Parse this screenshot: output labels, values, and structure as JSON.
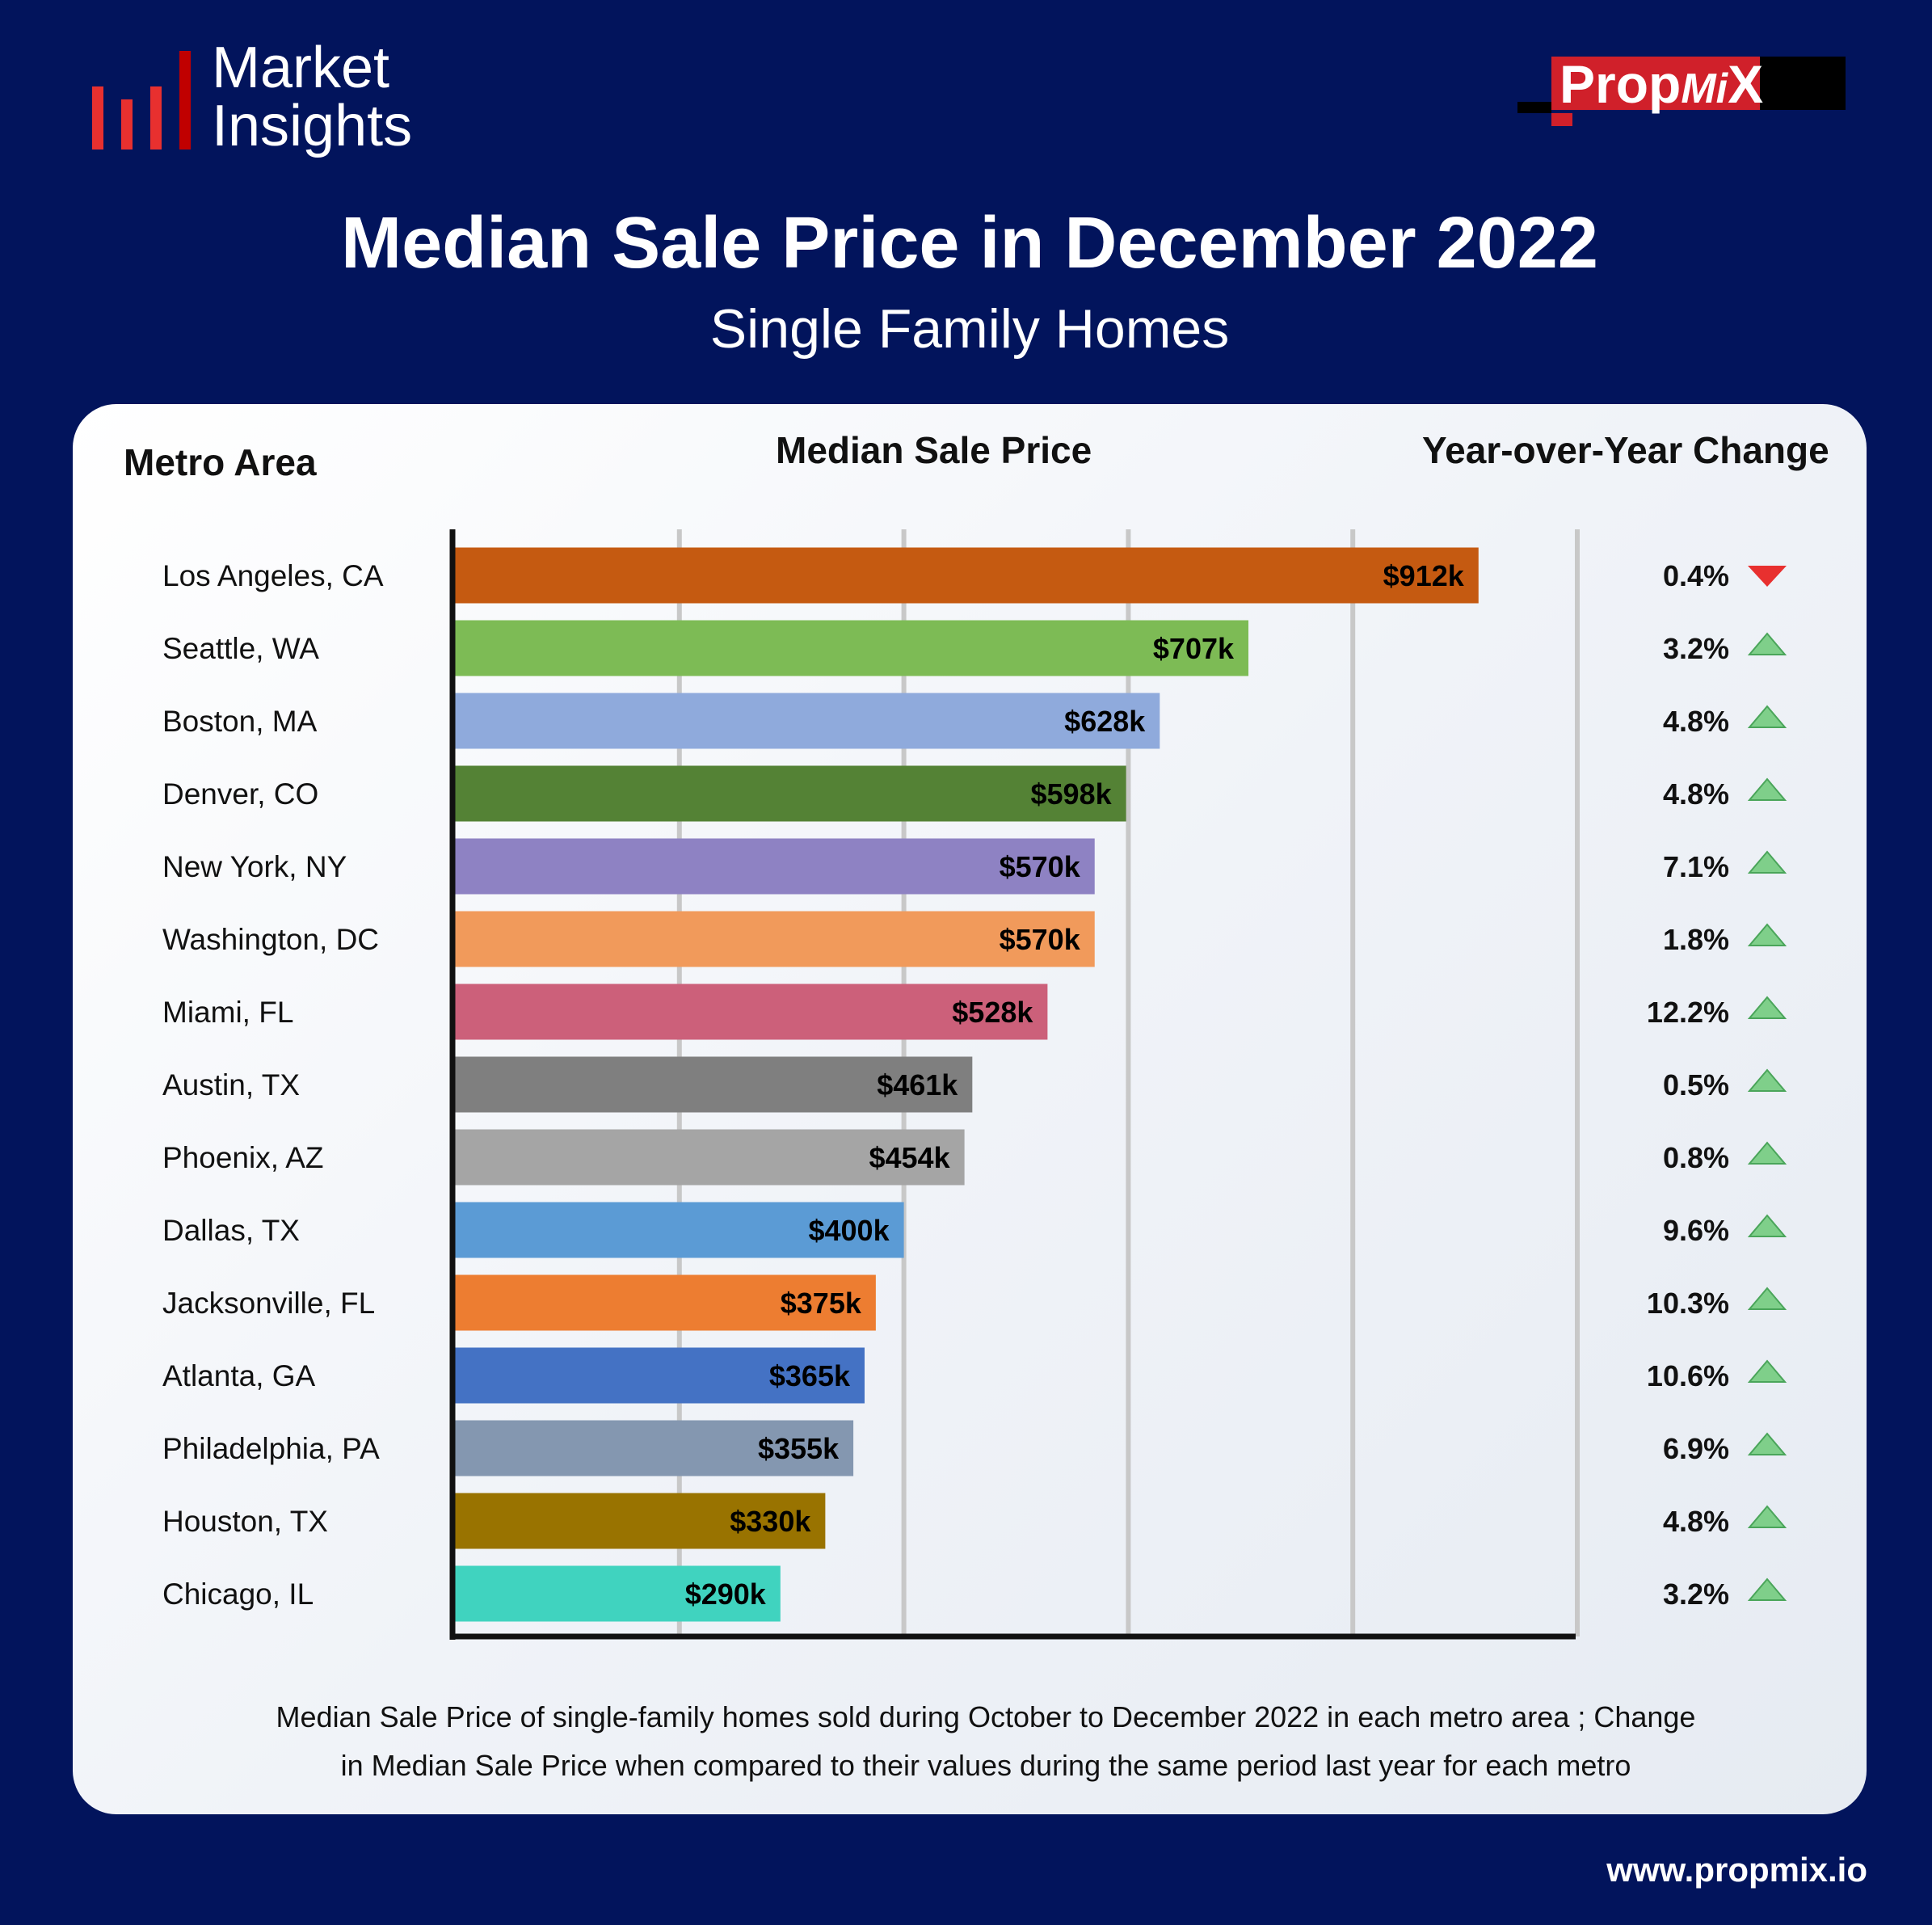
{
  "brand": {
    "logo_text_line1": "Market",
    "logo_text_line2": "Insights",
    "partner_logo": "PropMiX",
    "website": "www.propmix.io"
  },
  "header": {
    "title": "Median Sale Price in December 2022",
    "subtitle": "Single Family Homes"
  },
  "columns": {
    "metro": "Metro Area",
    "price": "Median Sale Price",
    "yoy": "Year-over-Year Change"
  },
  "footnote": {
    "line1": "Median Sale Price of single-family homes sold during October to December 2022 in each metro area ; Change",
    "line2": "in Median Sale Price when compared to their values during the same period last year for each metro"
  },
  "colors": {
    "up": "#7fcf8a",
    "down": "#e8302f"
  },
  "chart_data": {
    "type": "bar",
    "orientation": "horizontal",
    "title": "Median Sale Price in December 2022",
    "xlim": [
      0,
      1000
    ],
    "grid": true,
    "unit": "$k",
    "categories": [
      "Los Angeles, CA",
      "Seattle, WA",
      "Boston, MA",
      "Denver, CO",
      "New York, NY",
      "Washington, DC",
      "Miami, FL",
      "Austin, TX",
      "Phoenix, AZ",
      "Dallas, TX",
      "Jacksonville, FL",
      "Atlanta, GA",
      "Philadelphia, PA",
      "Houston, TX",
      "Chicago, IL"
    ],
    "values": [
      912,
      707,
      628,
      598,
      570,
      570,
      528,
      461,
      454,
      400,
      375,
      365,
      355,
      330,
      290
    ],
    "labels": [
      "$912k",
      "$707k",
      "$628k",
      "$598k",
      "$570k",
      "$570k",
      "$528k",
      "$461k",
      "$454k",
      "$400k",
      "$375k",
      "$365k",
      "$355k",
      "$330k",
      "$290k"
    ],
    "bar_colors": [
      "#c55a11",
      "#7dbb55",
      "#8faadc",
      "#548235",
      "#8e82c3",
      "#f19a5b",
      "#cc607a",
      "#7f7f7f",
      "#a5a5a5",
      "#5b9bd5",
      "#ed7d31",
      "#4472c4",
      "#8497b0",
      "#997300",
      "#40d3bf"
    ],
    "yoy_change": [
      "0.4%",
      "3.2%",
      "4.8%",
      "4.8%",
      "7.1%",
      "1.8%",
      "12.2%",
      "0.5%",
      "0.8%",
      "9.6%",
      "10.3%",
      "10.6%",
      "6.9%",
      "4.8%",
      "3.2%"
    ],
    "yoy_direction": [
      "down",
      "up",
      "up",
      "up",
      "up",
      "up",
      "up",
      "up",
      "up",
      "up",
      "up",
      "up",
      "up",
      "up",
      "up"
    ]
  }
}
